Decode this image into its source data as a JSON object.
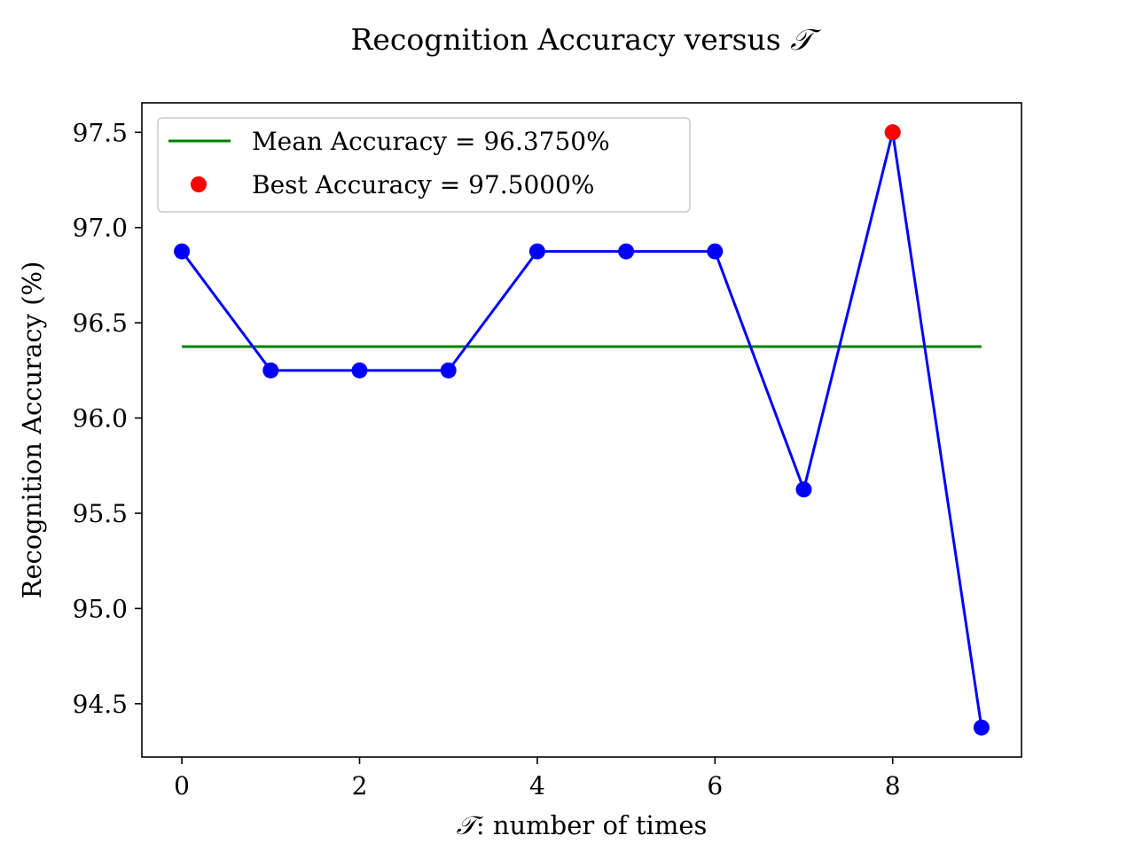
{
  "chart_data": {
    "type": "line",
    "title_prefix": "Recognition Accuracy versus ",
    "title_symbol": "𝒯",
    "xlabel_symbol": "𝒯",
    "xlabel_suffix": ": number of times",
    "ylabel": "Recognition Accuracy (%)",
    "x": [
      0,
      1,
      2,
      3,
      4,
      5,
      6,
      7,
      8,
      9
    ],
    "series": [
      {
        "values": [
          96.875,
          96.25,
          96.25,
          96.25,
          96.875,
          96.875,
          96.875,
          95.625,
          97.5,
          94.375
        ],
        "color": "#0000ff",
        "marker": "circle"
      }
    ],
    "mean_line": {
      "name": "Mean Accuracy = 96.3750%",
      "value": 96.375,
      "x_range": [
        0,
        9
      ],
      "color": "#008000"
    },
    "best_point": {
      "name": "Best Accuracy = 97.5000%",
      "x": 8,
      "y": 97.5,
      "color": "#ff0000"
    },
    "xlim": [
      -0.45,
      9.45
    ],
    "ylim": [
      94.22,
      97.655
    ],
    "xticks": [
      0,
      2,
      4,
      6,
      8
    ],
    "xtick_labels": [
      "0",
      "2",
      "4",
      "6",
      "8"
    ],
    "yticks": [
      94.5,
      95.0,
      95.5,
      96.0,
      96.5,
      97.0,
      97.5
    ],
    "ytick_labels": [
      "94.5",
      "95.0",
      "95.5",
      "96.0",
      "96.5",
      "97.0",
      "97.5"
    ],
    "legend_position": "upper-left",
    "grid": false
  }
}
